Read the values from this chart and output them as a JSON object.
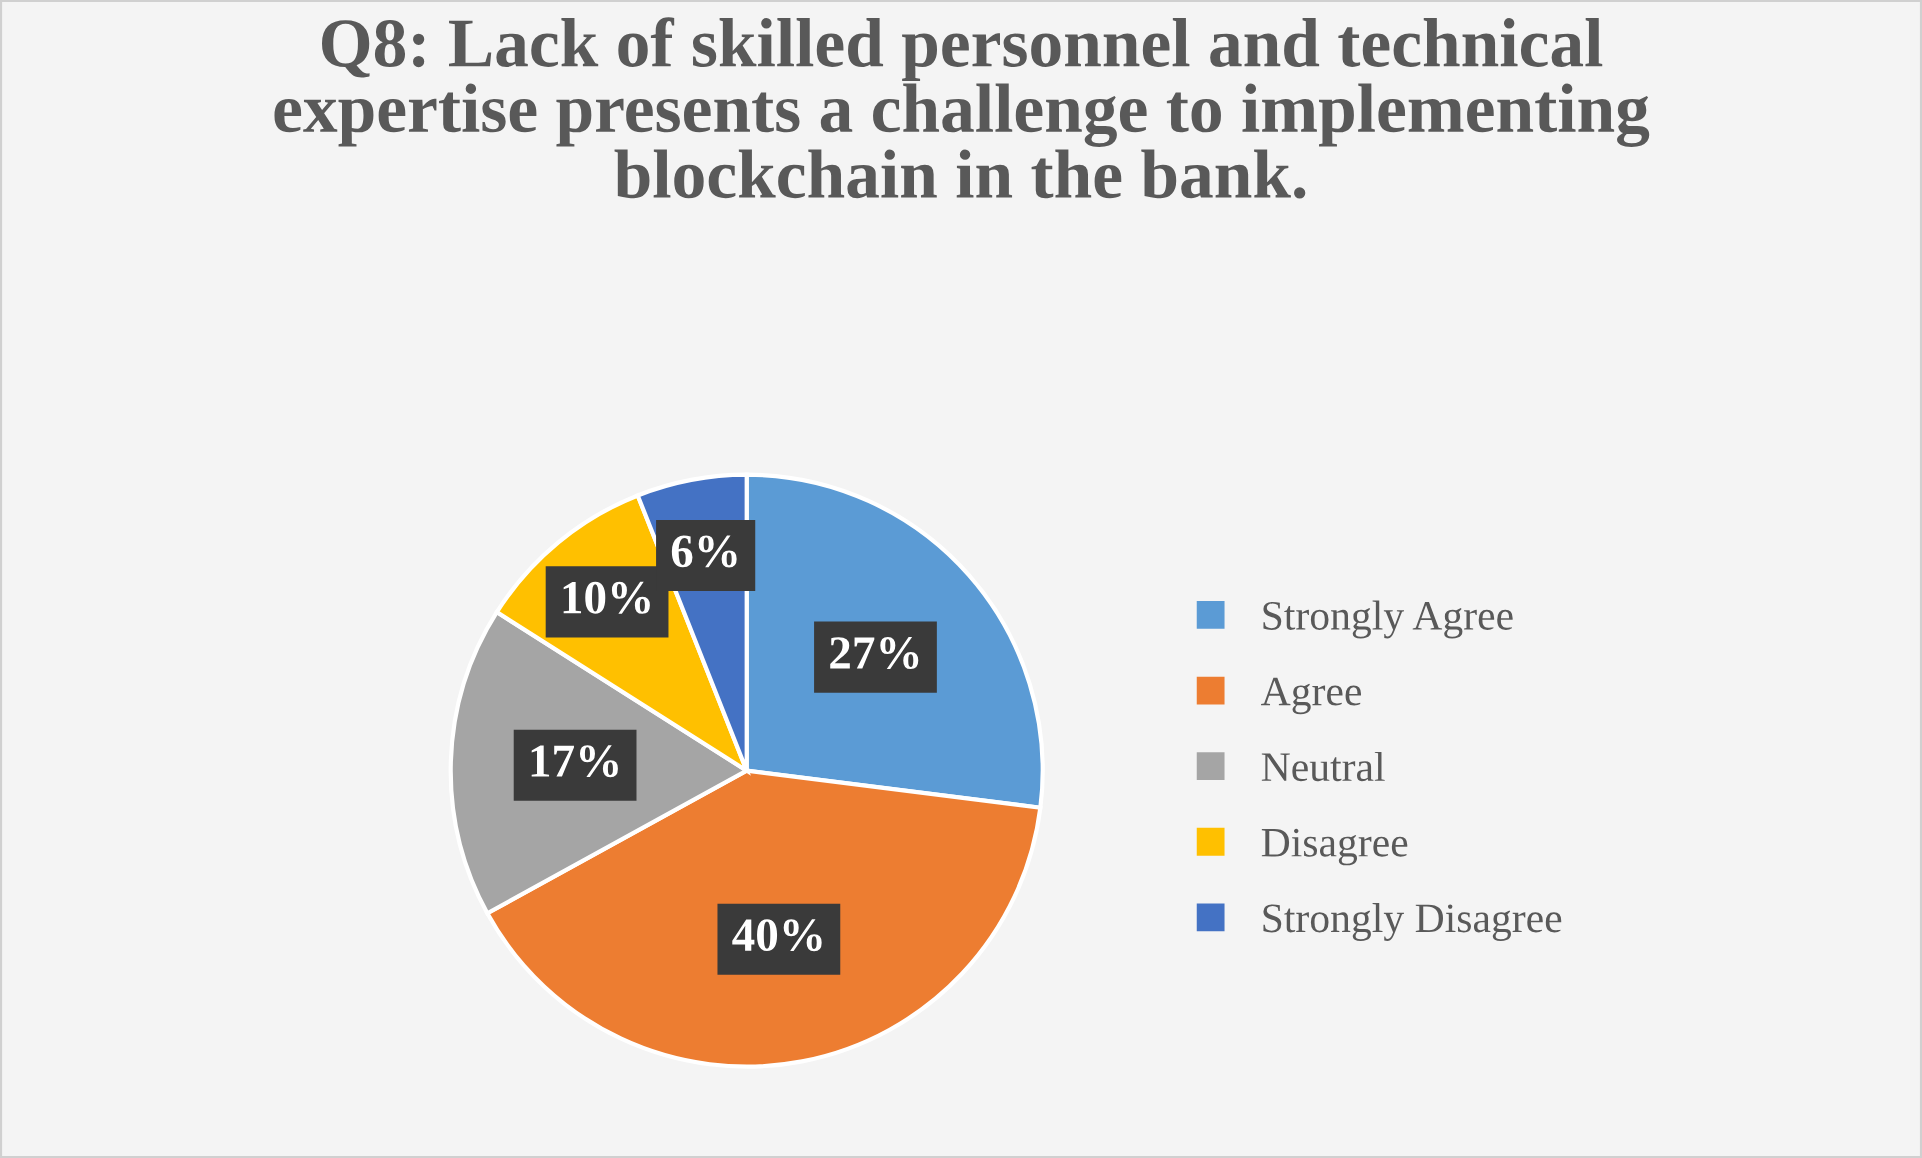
{
  "chart_data": {
    "type": "pie",
    "title": "Q8: Lack of skilled personnel and technical\nexpertise presents a challenge to implementing\nblockchain in the bank.",
    "categories": [
      "Strongly Agree",
      "Agree",
      "Neutral",
      "Disagree",
      "Strongly Disagree"
    ],
    "values": [
      27,
      40,
      17,
      10,
      6
    ],
    "colors": [
      "#5b9bd5",
      "#ed7d31",
      "#a5a5a5",
      "#ffc000",
      "#4472c4"
    ],
    "value_labels": [
      "27%",
      "40%",
      "17%",
      "10%",
      "6%"
    ],
    "legend": "right"
  }
}
